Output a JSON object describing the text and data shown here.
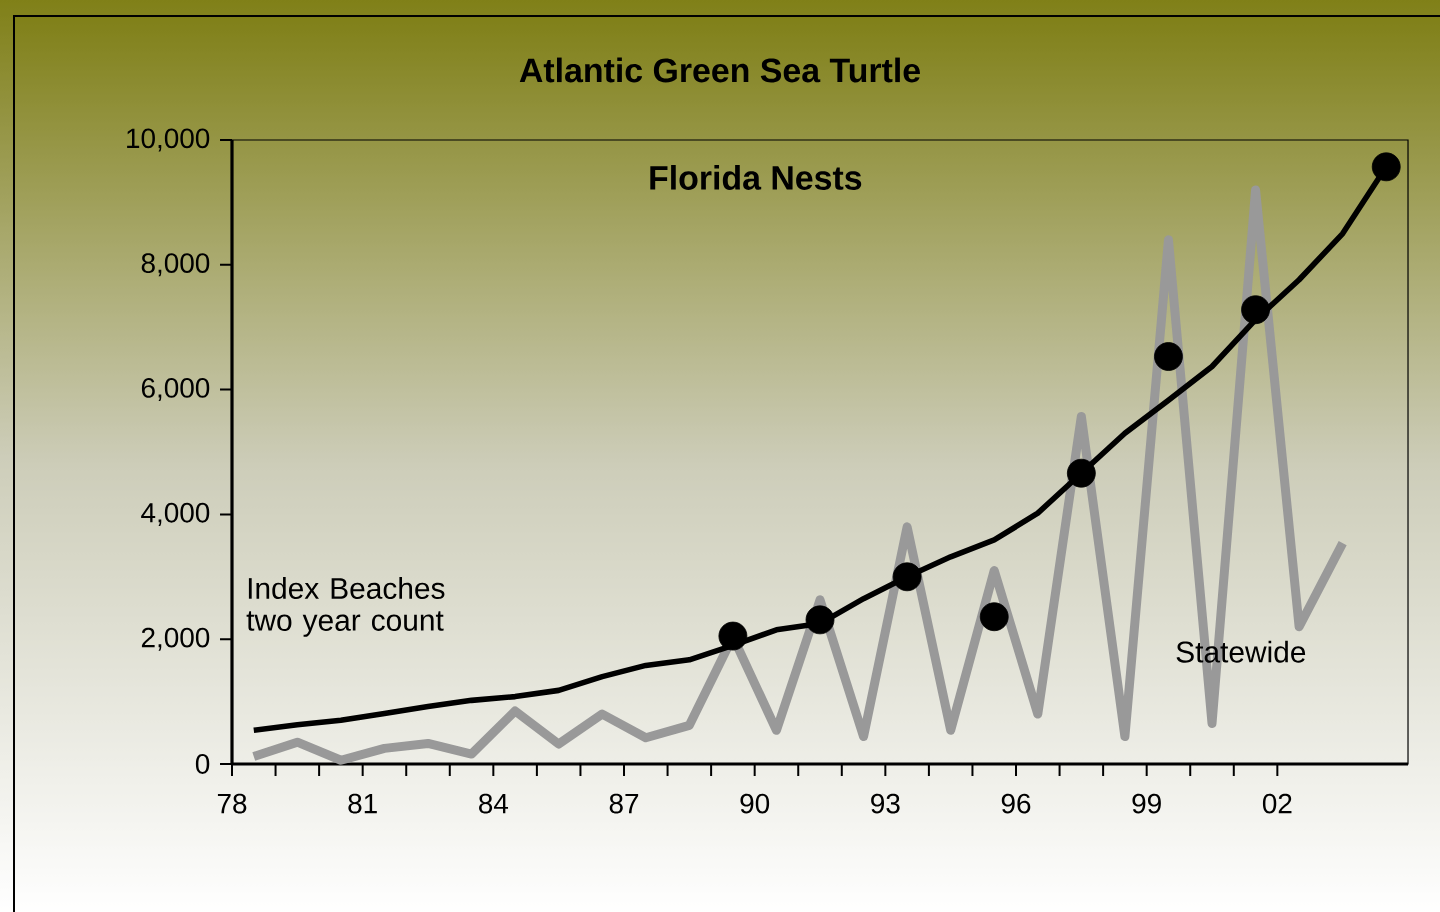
{
  "chart_data": {
    "type": "line",
    "title": "Atlantic Green Sea Turtle",
    "subtitle": "Florida Nests",
    "xlim": [
      1978,
      2005
    ],
    "ylim": [
      0,
      10000
    ],
    "xticks": [
      {
        "value": 1978,
        "label": "78"
      },
      {
        "value": 1981,
        "label": "81"
      },
      {
        "value": 1984,
        "label": "84"
      },
      {
        "value": 1987,
        "label": "87"
      },
      {
        "value": 1990,
        "label": "90"
      },
      {
        "value": 1993,
        "label": "93"
      },
      {
        "value": 1996,
        "label": "96"
      },
      {
        "value": 1999,
        "label": "99"
      },
      {
        "value": 2002,
        "label": "02"
      }
    ],
    "yticks": [
      0,
      {
        "value": 2000,
        "label": "2,000"
      },
      {
        "value": 4000,
        "label": "4,000"
      },
      {
        "value": 6000,
        "label": "6,000"
      },
      {
        "value": 8000,
        "label": "8,000"
      },
      {
        "value": 10000,
        "label": "10,000"
      }
    ],
    "grid": false,
    "series": [
      {
        "name": "Statewide",
        "color": "#999999",
        "x": [
          1978.5,
          1979.5,
          1980.5,
          1981.5,
          1982.5,
          1983.5,
          1984.5,
          1985.5,
          1986.5,
          1987.5,
          1988.5,
          1989.5,
          1990.5,
          1991.5,
          1992.5,
          1993.5,
          1994.5,
          1995.5,
          1996.5,
          1997.5,
          1998.5,
          1999.5,
          2000.5,
          2001.5,
          2002.5,
          2003.5
        ],
        "values": [
          120,
          350,
          60,
          250,
          330,
          160,
          850,
          320,
          800,
          420,
          620,
          2040,
          540,
          2630,
          440,
          3800,
          540,
          3100,
          800,
          5570,
          440,
          8400,
          650,
          9200,
          2200,
          3540
        ]
      },
      {
        "name": "Index Beaches two year count",
        "color": "#000000",
        "x": [
          1978.5,
          1979.5,
          1980.5,
          1981.5,
          1982.5,
          1983.5,
          1984.5,
          1985.5,
          1986.5,
          1987.5,
          1988.5,
          1989.5,
          1990.5,
          1991.5,
          1992.5,
          1993.5,
          1994.5,
          1995.5,
          1996.5,
          1997.5,
          1998.5,
          1999.5,
          2000.5,
          2001.5,
          2002.5,
          2003.5,
          2004.5
        ],
        "values": [
          540,
          630,
          700,
          810,
          920,
          1020,
          1080,
          1180,
          1400,
          1580,
          1670,
          1900,
          2150,
          2250,
          2650,
          3000,
          3320,
          3590,
          4020,
          4660,
          5300,
          5830,
          6370,
          7120,
          7760,
          8500,
          9570
        ]
      },
      {
        "type": "scatter",
        "marker": "circle",
        "color": "#000000",
        "x": [
          1989.5,
          1991.5,
          1993.5,
          1995.5,
          1997.5,
          1999.5,
          2001.5,
          2004.5
        ],
        "values": [
          2050,
          2310,
          3000,
          2360,
          4660,
          6530,
          7280,
          9570
        ]
      }
    ]
  }
}
